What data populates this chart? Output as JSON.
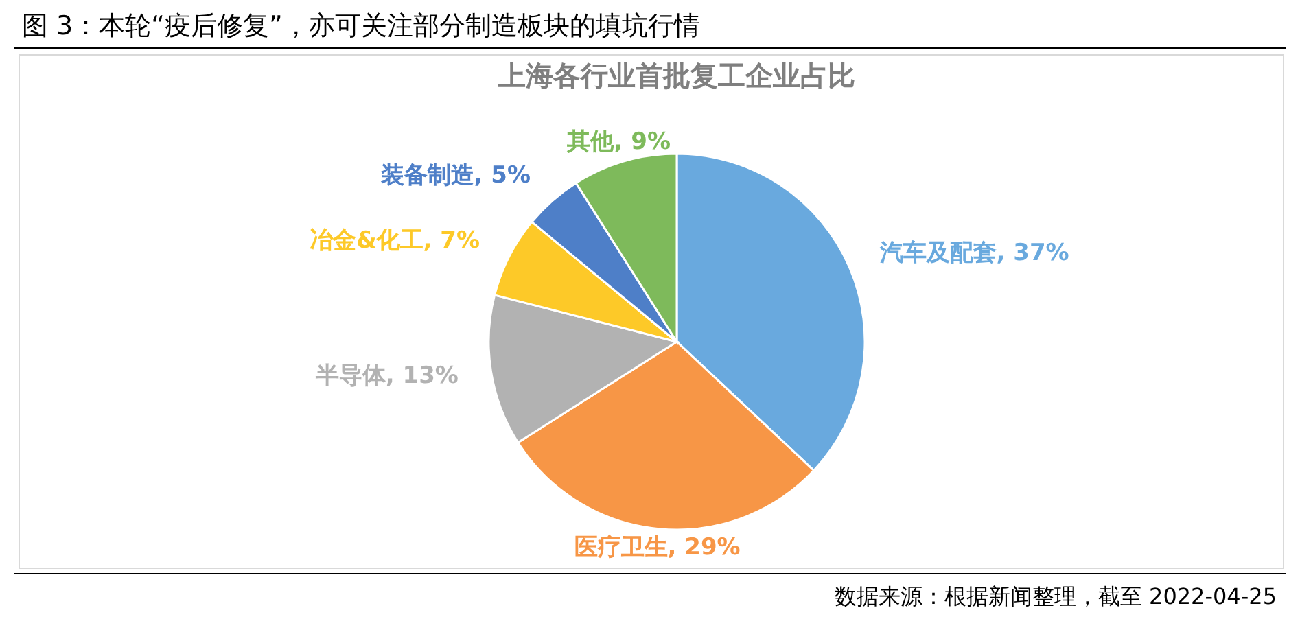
{
  "chart_data": {
    "type": "pie",
    "title": "上海各行业首批复工企业占比",
    "categories": [
      "汽车及配套",
      "医疗卫生",
      "半导体",
      "冶金&化工",
      "装备制造",
      "其他"
    ],
    "values": [
      37,
      29,
      13,
      7,
      5,
      9
    ],
    "value_labels": [
      "37%",
      "29%",
      "13%",
      "7%",
      "5%",
      "9%"
    ],
    "colors": [
      "#69a9de",
      "#f79646",
      "#b2b2b2",
      "#fdc928",
      "#4e7fc8",
      "#7eba5b"
    ],
    "annotations": [
      "图 3：本轮“疫后修复”，亦可关注部分制造板块的填坑行情",
      "数据来源：根据新闻整理，截至 2022-04-25"
    ]
  }
}
